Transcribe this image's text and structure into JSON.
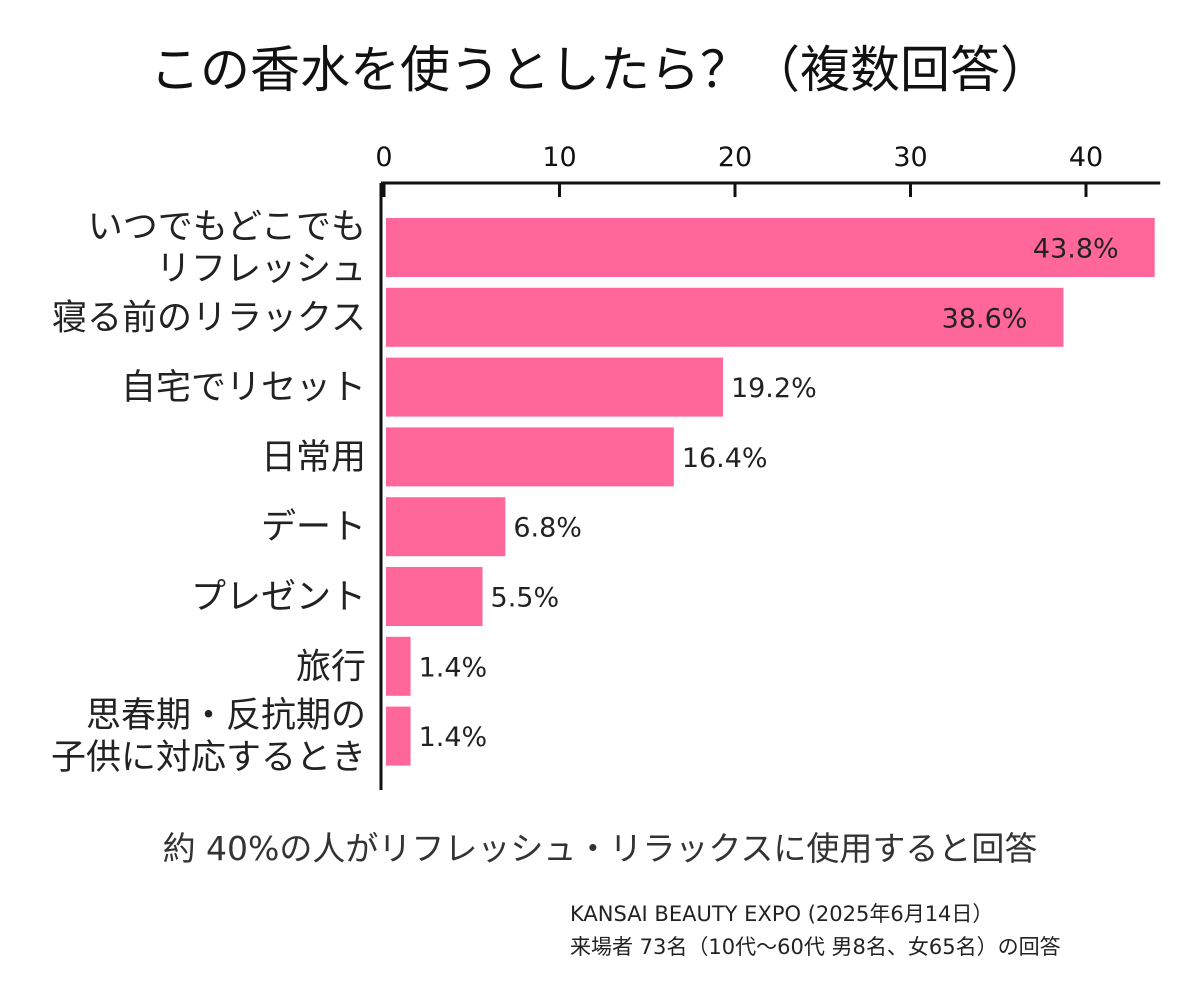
{
  "chart_data": {
    "type": "bar",
    "orientation": "horizontal",
    "title": "この香水を使うとしたら？（複数回答）",
    "categories": [
      "いつでもどこでも\nリフレッシュ",
      "寝る前のリラックス",
      "自宅でリセット",
      "日常用",
      "デート",
      "プレゼント",
      "旅行",
      "思春期・反抗期の\n子供に対応するとき"
    ],
    "values": [
      43.8,
      38.6,
      19.2,
      16.4,
      6.8,
      5.5,
      1.4,
      1.4
    ],
    "value_labels": [
      "43.8%",
      "38.6%",
      "19.2%",
      "16.4%",
      "6.8%",
      "5.5%",
      "1.4%",
      "1.4%"
    ],
    "xticks": [
      0,
      10,
      20,
      30,
      40
    ],
    "xlim": [
      0,
      44
    ],
    "xaxis_position": "top",
    "grid": false,
    "colors": {
      "bar": "#ff6699",
      "text": "#222222"
    }
  },
  "summary": "約 40%の人がリフレッシュ・リラックスに使用すると回答",
  "source_lines": [
    "KANSAI BEAUTY EXPO (2025年6月14日）",
    "来場者 73名（10代〜60代 男8名、女65名）の回答"
  ]
}
